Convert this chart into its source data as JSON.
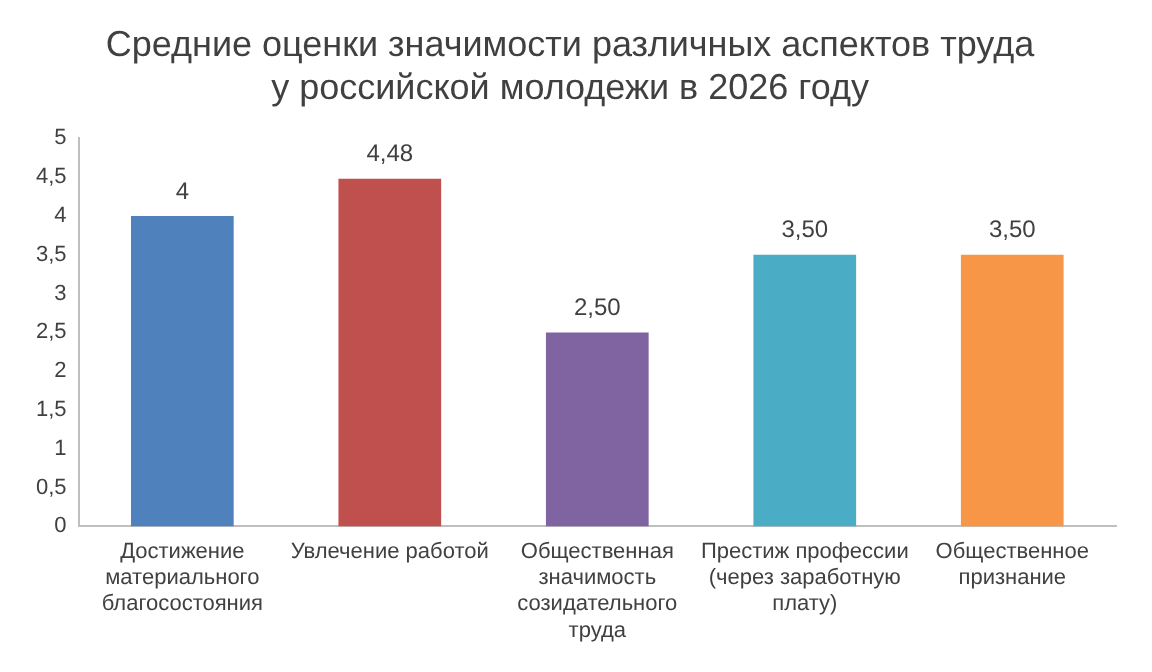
{
  "chart_data": {
    "type": "bar",
    "title": "Средние оценки значимости различных аспектов труда\nу российской молодежи в 2026 году",
    "categories": [
      "Достижение материального благосостояния",
      "Увлечение работой",
      "Общественная значимость созидательного труда",
      "Престиж профессии (через заработную плату)",
      "Общественное признание"
    ],
    "values": [
      4,
      4.48,
      2.5,
      3.5,
      3.5
    ],
    "colors": [
      "#4f81bd",
      "#c0504d",
      "#8064a2",
      "#4bacc6",
      "#f79646"
    ],
    "value_labels": [
      "4",
      "4,48",
      "2,50",
      "3,50",
      "3,50"
    ],
    "ylim": [
      0,
      5
    ],
    "yticks": [
      0,
      {
        "value": 0.5,
        "label": "0,5"
      },
      1,
      {
        "value": 1.5,
        "label": "1,5"
      },
      2,
      {
        "value": 2.5,
        "label": "2,5"
      },
      3,
      {
        "value": 3.5,
        "label": "3,5"
      },
      4,
      {
        "value": 4.5,
        "label": "4,5"
      },
      5
    ],
    "grid": false,
    "legend": false
  }
}
